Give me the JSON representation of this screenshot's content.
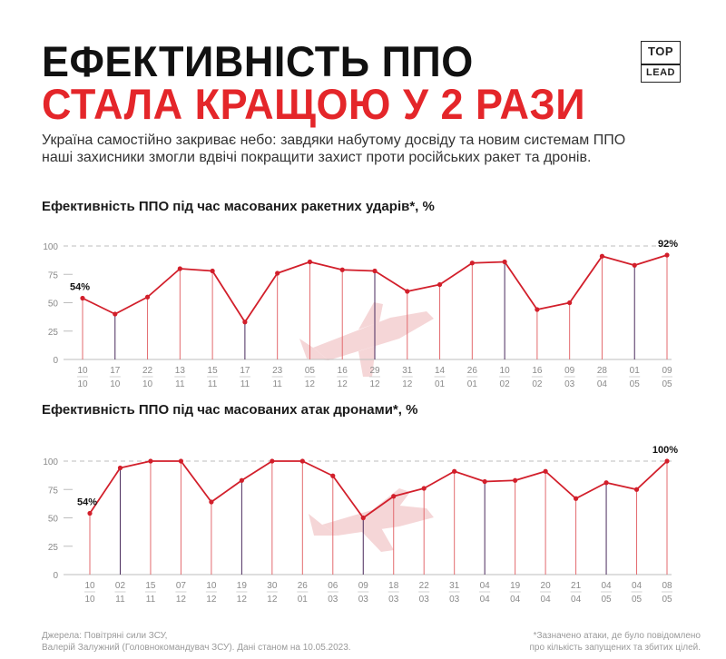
{
  "header": {
    "title_line1": "ЕФЕКТИВНІСТЬ ППО",
    "title_line2": "СТАЛА КРАЩОЮ У 2 РАЗИ",
    "logo_top": "TOP",
    "logo_bottom": "LEAD"
  },
  "intro": "Україна самостійно закриває небо: завдяки набутому досвіду та новим системам ППО наші захисники змогли вдвічі покращити захист проти російських ракет та дронів.",
  "colors": {
    "accent": "#e4262a",
    "line": "#d21f2b",
    "grid": "#bdbdbd",
    "dark_stem": "#4a2a5c",
    "drawing": "#f4cfd1"
  },
  "chart_data": [
    {
      "type": "line",
      "title": "Ефективність ППО під час масованих ракетних ударів*, %",
      "categories": [
        "10.10",
        "17.10",
        "22.10",
        "13.11",
        "15.11",
        "17.11",
        "23.11",
        "05.12",
        "16.12",
        "29.12",
        "31.12",
        "14.01",
        "26.01",
        "10.02",
        "16.02",
        "09.03",
        "28.04",
        "01.05",
        "09.05"
      ],
      "tick_top": [
        "10",
        "17",
        "22",
        "13",
        "15",
        "17",
        "23",
        "05",
        "16",
        "29",
        "31",
        "14",
        "26",
        "10",
        "16",
        "09",
        "28",
        "01",
        "09"
      ],
      "tick_bottom": [
        "10",
        "10",
        "10",
        "11",
        "11",
        "11",
        "11",
        "12",
        "12",
        "12",
        "12",
        "01",
        "01",
        "02",
        "02",
        "03",
        "04",
        "05",
        "05"
      ],
      "values": [
        54,
        40,
        55,
        80,
        78,
        33,
        76,
        86,
        79,
        78,
        60,
        66,
        85,
        86,
        44,
        50,
        91,
        83,
        92
      ],
      "data_labels": {
        "first": "54%",
        "last": "92%"
      },
      "ylim": [
        0,
        100
      ],
      "yticks": [
        "0",
        "25",
        "50",
        "75",
        "100"
      ],
      "grid": true
    },
    {
      "type": "line",
      "title": "Ефективність ППО під час масованих атак дронами*, %",
      "categories": [
        "10.10",
        "02.11",
        "15.11",
        "07.12",
        "10.12",
        "19.12",
        "30.12",
        "26.01",
        "06.03",
        "09.03",
        "18.03",
        "22.03",
        "31.03",
        "04.04",
        "19.04",
        "20.04",
        "21.04",
        "04.05",
        "04.05",
        "08.05"
      ],
      "tick_top": [
        "10",
        "02",
        "15",
        "07",
        "10",
        "19",
        "30",
        "26",
        "06",
        "09",
        "18",
        "22",
        "31",
        "04",
        "19",
        "20",
        "21",
        "04",
        "04",
        "08"
      ],
      "tick_bottom": [
        "10",
        "11",
        "11",
        "12",
        "12",
        "12",
        "12",
        "01",
        "03",
        "03",
        "03",
        "03",
        "03",
        "04",
        "04",
        "04",
        "04",
        "05",
        "05",
        "05"
      ],
      "values": [
        54,
        94,
        100,
        100,
        64,
        83,
        100,
        100,
        87,
        50,
        69,
        76,
        91,
        82,
        83,
        91,
        67,
        81,
        75,
        100
      ],
      "data_labels": {
        "first": "54%",
        "last": "100%"
      },
      "ylim": [
        0,
        100
      ],
      "yticks": [
        "0",
        "25",
        "50",
        "75",
        "100"
      ],
      "grid": true
    }
  ],
  "footer": {
    "source_line1": "Джерела: Повітряні сили ЗСУ,",
    "source_line2": "Валерій Залужний (Головнокомандувач ЗСУ). Дані станом на 10.05.2023.",
    "note_line1": "*Зазначено атаки, де було повідомлено",
    "note_line2": "про кількість запущених та збитих цілей."
  }
}
